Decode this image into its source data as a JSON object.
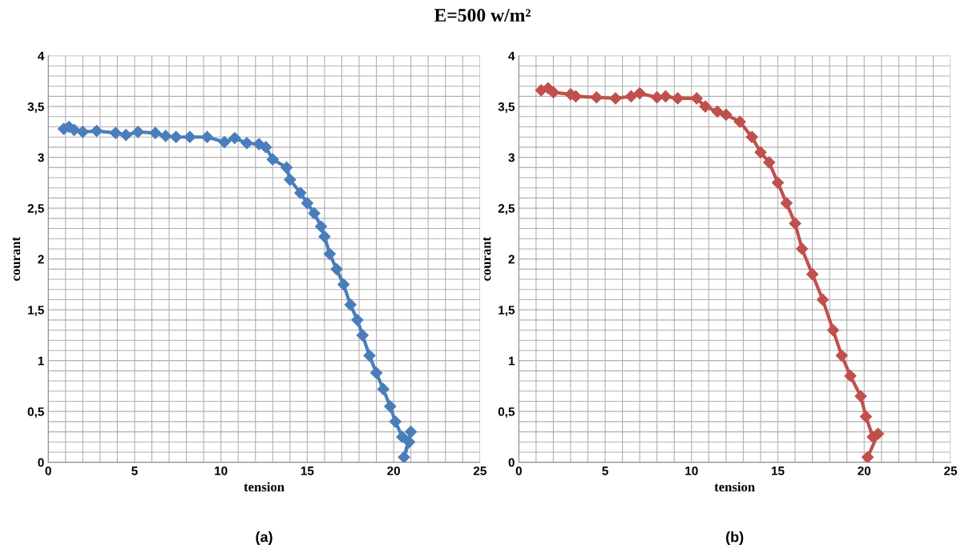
{
  "chart_data": [
    {
      "type": "line",
      "title": "E=500 w/m²",
      "xlabel": "tension",
      "ylabel": "courant",
      "annotations": [
        "(a)"
      ],
      "marker": "diamond",
      "line_style": "solid",
      "grid": true,
      "xlim": [
        0,
        25
      ],
      "ylim": [
        0,
        4
      ],
      "xticks": [
        0,
        {
          "value": 1,
          "label": null
        },
        {
          "value": 2,
          "label": null
        },
        {
          "value": 3,
          "label": null
        },
        {
          "value": 4,
          "label": null
        },
        5,
        {
          "value": 6,
          "label": null
        },
        {
          "value": 7,
          "label": null
        },
        {
          "value": 8,
          "label": null
        },
        {
          "value": 9,
          "label": null
        },
        10,
        {
          "value": 11,
          "label": null
        },
        {
          "value": 12,
          "label": null
        },
        {
          "value": 13,
          "label": null
        },
        {
          "value": 14,
          "label": null
        },
        15,
        {
          "value": 16,
          "label": null
        },
        {
          "value": 17,
          "label": null
        },
        {
          "value": 18,
          "label": null
        },
        {
          "value": 19,
          "label": null
        },
        20,
        {
          "value": 21,
          "label": null
        },
        {
          "value": 22,
          "label": null
        },
        {
          "value": 23,
          "label": null
        },
        {
          "value": 24,
          "label": null
        },
        25
      ],
      "yticks": [
        0,
        {
          "value": 0.1,
          "label": null
        },
        {
          "value": 0.2,
          "label": null
        },
        {
          "value": 0.3,
          "label": null
        },
        {
          "value": 0.4,
          "label": null
        },
        {
          "value": 0.5,
          "label": "0,5"
        },
        {
          "value": 0.6,
          "label": null
        },
        {
          "value": 0.7,
          "label": null
        },
        {
          "value": 0.8,
          "label": null
        },
        {
          "value": 0.9,
          "label": null
        },
        1,
        {
          "value": 1.1,
          "label": null
        },
        {
          "value": 1.2,
          "label": null
        },
        {
          "value": 1.3,
          "label": null
        },
        {
          "value": 1.4,
          "label": null
        },
        {
          "value": 1.5,
          "label": "1,5"
        },
        {
          "value": 1.6,
          "label": null
        },
        {
          "value": 1.7,
          "label": null
        },
        {
          "value": 1.8,
          "label": null
        },
        {
          "value": 1.9,
          "label": null
        },
        2,
        {
          "value": 2.1,
          "label": null
        },
        {
          "value": 2.2,
          "label": null
        },
        {
          "value": 2.3,
          "label": null
        },
        {
          "value": 2.4,
          "label": null
        },
        {
          "value": 2.5,
          "label": "2,5"
        },
        {
          "value": 2.6,
          "label": null
        },
        {
          "value": 2.7,
          "label": null
        },
        {
          "value": 2.8,
          "label": null
        },
        {
          "value": 2.9,
          "label": null
        },
        3,
        {
          "value": 3.1,
          "label": null
        },
        {
          "value": 3.2,
          "label": null
        },
        {
          "value": 3.3,
          "label": null
        },
        {
          "value": 3.4,
          "label": null
        },
        {
          "value": 3.5,
          "label": "3,5"
        },
        {
          "value": 3.6,
          "label": null
        },
        {
          "value": 3.7,
          "label": null
        },
        {
          "value": 3.8,
          "label": null
        },
        {
          "value": 3.9,
          "label": null
        },
        4
      ],
      "series": [
        {
          "color": "#4a7ebb",
          "x": [
            0.9,
            1.2,
            1.5,
            2.0,
            2.8,
            3.9,
            4.5,
            5.2,
            6.2,
            6.8,
            7.4,
            8.2,
            9.2,
            10.2,
            10.8,
            11.5,
            12.2,
            12.6,
            13.0,
            13.8,
            14.0,
            14.6,
            15.0,
            15.4,
            15.8,
            16.0,
            16.3,
            16.7,
            17.1,
            17.5,
            17.9,
            18.2,
            18.6,
            19.0,
            19.4,
            19.8,
            20.1,
            20.5,
            20.9,
            20.6,
            21.0
          ],
          "values": [
            3.28,
            3.3,
            3.27,
            3.25,
            3.26,
            3.24,
            3.22,
            3.25,
            3.24,
            3.21,
            3.2,
            3.2,
            3.2,
            3.15,
            3.19,
            3.14,
            3.13,
            3.1,
            2.98,
            2.9,
            2.78,
            2.65,
            2.55,
            2.45,
            2.32,
            2.22,
            2.05,
            1.9,
            1.75,
            1.55,
            1.4,
            1.25,
            1.05,
            0.88,
            0.72,
            0.55,
            0.4,
            0.25,
            0.2,
            0.05,
            0.3
          ]
        }
      ]
    },
    {
      "type": "line",
      "xlabel": "tension",
      "ylabel": "courant",
      "annotations": [
        "(b)"
      ],
      "marker": "diamond",
      "line_style": "solid",
      "grid": true,
      "xlim": [
        0,
        25
      ],
      "ylim": [
        0,
        4
      ],
      "xticks": [
        0,
        {
          "value": 1,
          "label": null
        },
        {
          "value": 2,
          "label": null
        },
        {
          "value": 3,
          "label": null
        },
        {
          "value": 4,
          "label": null
        },
        5,
        {
          "value": 6,
          "label": null
        },
        {
          "value": 7,
          "label": null
        },
        {
          "value": 8,
          "label": null
        },
        {
          "value": 9,
          "label": null
        },
        10,
        {
          "value": 11,
          "label": null
        },
        {
          "value": 12,
          "label": null
        },
        {
          "value": 13,
          "label": null
        },
        {
          "value": 14,
          "label": null
        },
        15,
        {
          "value": 16,
          "label": null
        },
        {
          "value": 17,
          "label": null
        },
        {
          "value": 18,
          "label": null
        },
        {
          "value": 19,
          "label": null
        },
        20,
        {
          "value": 21,
          "label": null
        },
        {
          "value": 22,
          "label": null
        },
        {
          "value": 23,
          "label": null
        },
        {
          "value": 24,
          "label": null
        },
        25
      ],
      "yticks": [
        0,
        {
          "value": 0.1,
          "label": null
        },
        {
          "value": 0.2,
          "label": null
        },
        {
          "value": 0.3,
          "label": null
        },
        {
          "value": 0.4,
          "label": null
        },
        {
          "value": 0.5,
          "label": "0,5"
        },
        {
          "value": 0.6,
          "label": null
        },
        {
          "value": 0.7,
          "label": null
        },
        {
          "value": 0.8,
          "label": null
        },
        {
          "value": 0.9,
          "label": null
        },
        1,
        {
          "value": 1.1,
          "label": null
        },
        {
          "value": 1.2,
          "label": null
        },
        {
          "value": 1.3,
          "label": null
        },
        {
          "value": 1.4,
          "label": null
        },
        {
          "value": 1.5,
          "label": "1,5"
        },
        {
          "value": 1.6,
          "label": null
        },
        {
          "value": 1.7,
          "label": null
        },
        {
          "value": 1.8,
          "label": null
        },
        {
          "value": 1.9,
          "label": null
        },
        2,
        {
          "value": 2.1,
          "label": null
        },
        {
          "value": 2.2,
          "label": null
        },
        {
          "value": 2.3,
          "label": null
        },
        {
          "value": 2.4,
          "label": null
        },
        {
          "value": 2.5,
          "label": "2,5"
        },
        {
          "value": 2.6,
          "label": null
        },
        {
          "value": 2.7,
          "label": null
        },
        {
          "value": 2.8,
          "label": null
        },
        {
          "value": 2.9,
          "label": null
        },
        3,
        {
          "value": 3.1,
          "label": null
        },
        {
          "value": 3.2,
          "label": null
        },
        {
          "value": 3.3,
          "label": null
        },
        {
          "value": 3.4,
          "label": null
        },
        {
          "value": 3.5,
          "label": "3,5"
        },
        {
          "value": 3.6,
          "label": null
        },
        {
          "value": 3.7,
          "label": null
        },
        {
          "value": 3.8,
          "label": null
        },
        {
          "value": 3.9,
          "label": null
        },
        4
      ],
      "series": [
        {
          "color": "#c0504d",
          "x": [
            1.3,
            1.7,
            2.0,
            3.0,
            3.3,
            4.5,
            5.6,
            6.5,
            7.0,
            8.0,
            8.5,
            9.2,
            10.3,
            10.8,
            11.5,
            12.0,
            12.8,
            13.5,
            14.0,
            14.5,
            15.0,
            15.5,
            16.0,
            16.4,
            17.0,
            17.6,
            18.2,
            18.7,
            19.2,
            19.8,
            20.1,
            20.5,
            20.8,
            20.2
          ],
          "values": [
            3.66,
            3.68,
            3.64,
            3.62,
            3.6,
            3.59,
            3.58,
            3.6,
            3.63,
            3.59,
            3.6,
            3.58,
            3.58,
            3.5,
            3.45,
            3.42,
            3.35,
            3.2,
            3.05,
            2.95,
            2.75,
            2.55,
            2.35,
            2.1,
            1.85,
            1.6,
            1.3,
            1.05,
            0.85,
            0.65,
            0.45,
            0.25,
            0.28,
            0.05
          ]
        }
      ]
    }
  ]
}
